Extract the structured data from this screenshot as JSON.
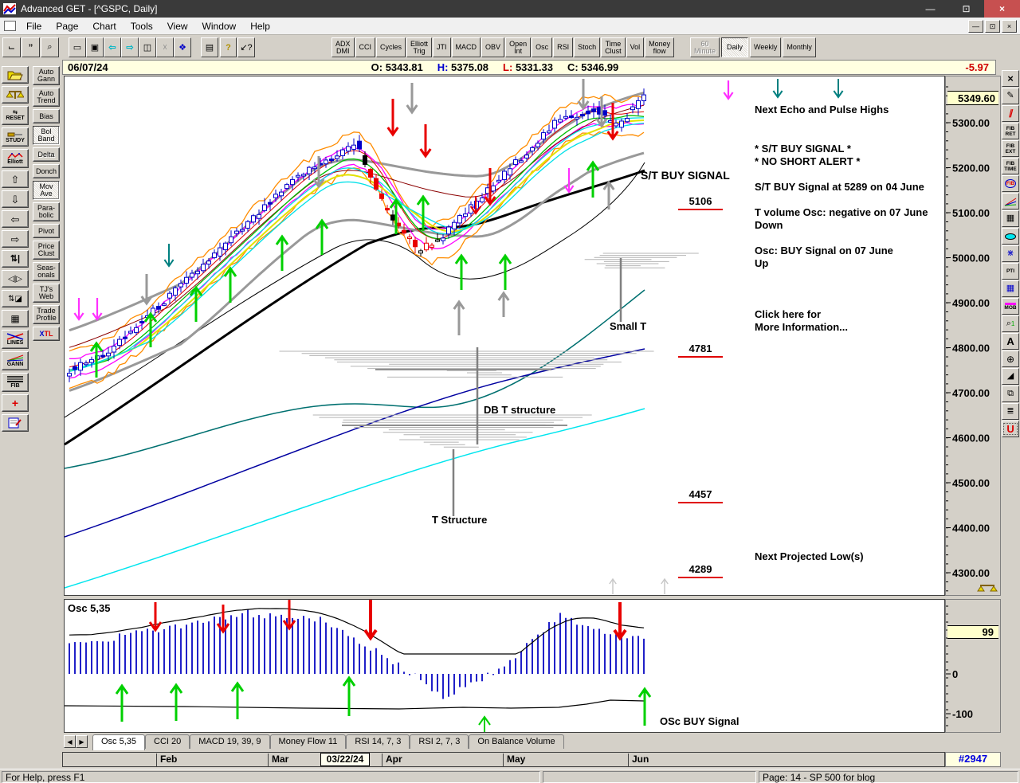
{
  "window": {
    "title": "Advanced GET - [^GSPC, Daily]"
  },
  "menu": {
    "items": [
      "File",
      "Page",
      "Chart",
      "Tools",
      "View",
      "Window",
      "Help"
    ]
  },
  "toolbar": {
    "indicators": [
      {
        "id": "adx-dmi",
        "lines": [
          "ADX",
          "DMI"
        ]
      },
      {
        "id": "cci",
        "lines": [
          "CCI"
        ]
      },
      {
        "id": "cycles",
        "lines": [
          "Cycles"
        ]
      },
      {
        "id": "elliott-trig",
        "lines": [
          "Elliott",
          "Trig"
        ]
      },
      {
        "id": "jti",
        "lines": [
          "JTI"
        ]
      },
      {
        "id": "macd",
        "lines": [
          "MACD"
        ]
      },
      {
        "id": "obv",
        "lines": [
          "OBV"
        ]
      },
      {
        "id": "open-int",
        "lines": [
          "Open",
          "Int"
        ]
      },
      {
        "id": "osc",
        "lines": [
          "Osc"
        ]
      },
      {
        "id": "rsi",
        "lines": [
          "RSI"
        ]
      },
      {
        "id": "stoch",
        "lines": [
          "Stoch"
        ]
      },
      {
        "id": "time-clust",
        "lines": [
          "Time",
          "Clust"
        ]
      },
      {
        "id": "vol",
        "lines": [
          "Vol"
        ]
      },
      {
        "id": "money-flow",
        "lines": [
          "Money",
          "flow"
        ]
      }
    ],
    "timeframes": [
      {
        "id": "60-minute",
        "lines": [
          "60",
          "Minute"
        ],
        "state": "disabled"
      },
      {
        "id": "daily",
        "lines": [
          "Daily"
        ],
        "state": "active"
      },
      {
        "id": "weekly",
        "lines": [
          "Weekly"
        ],
        "state": "normal"
      },
      {
        "id": "monthly",
        "lines": [
          "Monthly"
        ],
        "state": "normal"
      }
    ]
  },
  "info_bar": {
    "date": "06/07/24",
    "o_label": "O:",
    "o": "5343.81",
    "h_label": "H:",
    "h": "5375.08",
    "l_label": "L:",
    "l": "5331.33",
    "c_label": "C:",
    "c": "5346.99",
    "change": "-5.97"
  },
  "sidebar": {
    "icon_tools": [
      {
        "id": "open-chart",
        "label": ""
      },
      {
        "id": "scales",
        "label": ""
      },
      {
        "id": "reset",
        "label": "RESET"
      },
      {
        "id": "study",
        "label": "STUDY"
      },
      {
        "id": "elliott",
        "label": "Elliott"
      },
      {
        "id": "arrow-up",
        "label": ""
      },
      {
        "id": "arrow-down",
        "label": ""
      },
      {
        "id": "arrow-left",
        "label": ""
      },
      {
        "id": "arrow-right",
        "label": ""
      },
      {
        "id": "bar-step",
        "label": ""
      },
      {
        "id": "bar-compare",
        "label": ""
      },
      {
        "id": "compress",
        "label": ""
      },
      {
        "id": "grid",
        "label": ""
      },
      {
        "id": "lines",
        "label": "LINES"
      },
      {
        "id": "gann",
        "label": "GANN"
      },
      {
        "id": "fib",
        "label": "FIB"
      },
      {
        "id": "crosshair",
        "label": ""
      },
      {
        "id": "properties",
        "label": ""
      }
    ],
    "study_buttons": [
      {
        "id": "auto-gann",
        "lines": [
          "Auto",
          "Gann"
        ],
        "state": "normal"
      },
      {
        "id": "auto-trend",
        "lines": [
          "Auto",
          "Trend"
        ],
        "state": "normal"
      },
      {
        "id": "bias",
        "lines": [
          "Bias"
        ],
        "state": "normal"
      },
      {
        "id": "bol-band",
        "lines": [
          "Bol",
          "Band"
        ],
        "state": "pressed"
      },
      {
        "id": "delta",
        "lines": [
          "Delta"
        ],
        "state": "disabled"
      },
      {
        "id": "donch",
        "lines": [
          "Donch"
        ],
        "state": "normal"
      },
      {
        "id": "mov-ave",
        "lines": [
          "Mov",
          "Ave"
        ],
        "state": "pressed"
      },
      {
        "id": "parabolic",
        "lines": [
          "Para-",
          "bolic"
        ],
        "state": "normal"
      },
      {
        "id": "pivot",
        "lines": [
          "Pivot"
        ],
        "state": "normal"
      },
      {
        "id": "price-clust",
        "lines": [
          "Price",
          "Clust"
        ],
        "state": "normal"
      },
      {
        "id": "seasonals",
        "lines": [
          "Seas-",
          "onals"
        ],
        "state": "normal"
      },
      {
        "id": "tjs-web",
        "lines": [
          "TJ's",
          "Web"
        ],
        "state": "normal"
      },
      {
        "id": "trade-profile",
        "lines": [
          "Trade",
          "Profile"
        ],
        "state": "normal"
      },
      {
        "id": "xtl",
        "lines": [
          "XTL"
        ],
        "state": "normal"
      }
    ]
  },
  "right_toolbar": {
    "buttons": [
      {
        "id": "delete-tool",
        "glyph": "x"
      },
      {
        "id": "pencil",
        "glyph": "pencil"
      },
      {
        "id": "parallel-lines",
        "glyph": "par"
      },
      {
        "id": "fib-retracement",
        "lines": [
          "FIB",
          "RET"
        ]
      },
      {
        "id": "fib-extension",
        "lines": [
          "FIB",
          "EXT"
        ]
      },
      {
        "id": "fib-time",
        "lines": [
          "FIB",
          "TIME"
        ]
      },
      {
        "id": "fib-circle",
        "lines": [
          "FIB"
        ]
      },
      {
        "id": "fan-lines",
        "glyph": "fan"
      },
      {
        "id": "grid-tool",
        "glyph": "grid"
      },
      {
        "id": "ellipse",
        "lines": [
          "ELiPS"
        ]
      },
      {
        "id": "regression",
        "glyph": "reg"
      },
      {
        "id": "pti",
        "lines": [
          "PTI"
        ]
      },
      {
        "id": "grid-blue",
        "glyph": "gridb"
      },
      {
        "id": "mob",
        "lines": [
          "MOB"
        ]
      },
      {
        "id": "value-finder",
        "glyph": "find"
      },
      {
        "id": "text-tool",
        "glyph": "A"
      },
      {
        "id": "zoom-tool",
        "glyph": "zoom"
      },
      {
        "id": "eraser",
        "glyph": "erase"
      },
      {
        "id": "expand",
        "glyph": "expand"
      },
      {
        "id": "pages",
        "glyph": "pages"
      },
      {
        "id": "magnet",
        "glyph": "U"
      }
    ]
  },
  "chart": {
    "price_axis": {
      "last": "5349.60",
      "ticks": [
        "5300.00",
        "5200.00",
        "5100.00",
        "5000.00",
        "4900.00",
        "4800.00",
        "4700.00",
        "4600.00",
        "4500.00",
        "4400.00",
        "4300.00"
      ]
    },
    "levels": [
      {
        "value": "5106"
      },
      {
        "value": "4781"
      },
      {
        "value": "4457"
      },
      {
        "value": "4289"
      }
    ],
    "annotations": {
      "st_buy_signal_chart": "S/T BUY SIGNAL",
      "next_echo": "Next Echo and Pulse Highs",
      "st_buy_line1": "* S/T BUY SIGNAL *",
      "no_short": "* NO SHORT ALERT *",
      "st_buy_detail": "S/T BUY Signal at 5289 on 04 June",
      "t_volume_1": "T volume Osc: negative on 07 June",
      "t_volume_2": "Down",
      "osc_buy_1": "Osc: BUY Signal on 07 June",
      "osc_buy_2": "Up",
      "click_1": "Click here for",
      "click_2": "More Information...",
      "next_low": "Next Projected Low(s)",
      "small_t": "Small T",
      "db_t": "DB T structure",
      "t_structure": "T Structure"
    }
  },
  "oscillator": {
    "label": "Osc 5,35",
    "buy_signal": "OSc BUY Signal",
    "scale": {
      "current": "99",
      "zero": "0",
      "minus": "-100"
    }
  },
  "tabs": [
    {
      "label": "Osc 5,35",
      "active": true
    },
    {
      "label": "CCI 20",
      "active": false
    },
    {
      "label": "MACD 19, 39, 9",
      "active": false
    },
    {
      "label": "Money Flow 11",
      "active": false
    },
    {
      "label": "RSI 14, 7, 3",
      "active": false
    },
    {
      "label": "RSI 2, 7, 3",
      "active": false
    },
    {
      "label": "On Balance Volume",
      "active": false
    }
  ],
  "date_axis": {
    "months": [
      "Feb",
      "Mar",
      "Apr",
      "May",
      "Jun"
    ],
    "date_box": "03/22/24",
    "bar_number": "#2947"
  },
  "status_bar": {
    "help": "For Help, press F1",
    "page": "Page: 14 - SP 500 for blog"
  },
  "colors": {
    "candle_up": "#0000c8",
    "candle_down_red": "#e80000",
    "histogram": "#2020c8",
    "up_arrow": "#00d000",
    "down_arrow": "#e80000",
    "level_line": "#e00000",
    "change_negative": "#d00000"
  }
}
